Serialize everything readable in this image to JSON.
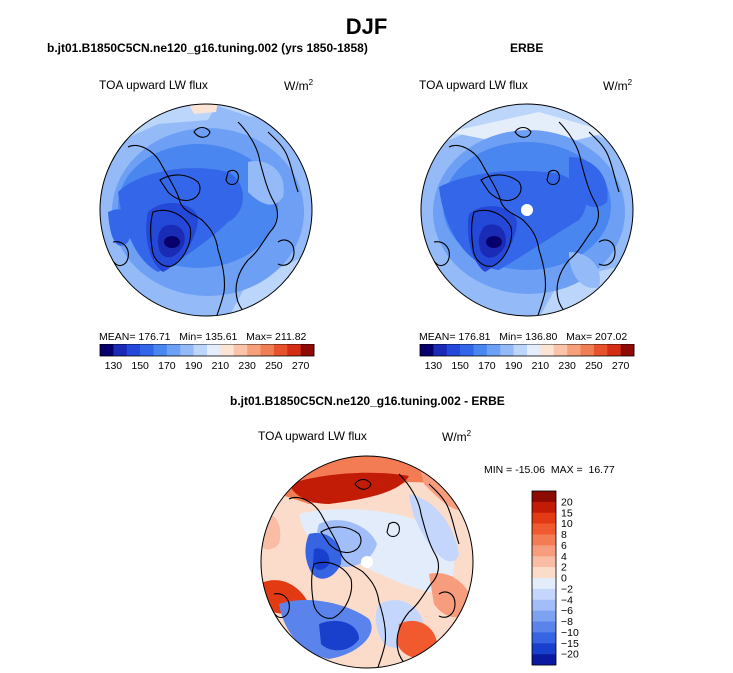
{
  "figure": {
    "season": "DJF"
  },
  "panels": {
    "model": {
      "title": "b.jt01.B1850C5CN.ne120_g16.tuning.002 (yrs 1850-1858)",
      "variable": "TOA upward LW flux",
      "units": "W/m",
      "units_exp": "2",
      "mean_label": "MEAN=",
      "mean": "176.71",
      "min_label": "Min=",
      "min": "135.61",
      "max_label": "Max=",
      "max": "211.82"
    },
    "obs": {
      "title": "ERBE",
      "variable": "TOA upward LW flux",
      "units": "W/m",
      "units_exp": "2",
      "mean_label": "MEAN=",
      "mean": "176.81",
      "min_label": "Min=",
      "min": "136.80",
      "max_label": "Max=",
      "max": "207.02"
    },
    "diff": {
      "title": "b.jt01.B1850C5CN.ne120_g16.tuning.002 - ERBE",
      "variable": "TOA upward LW flux",
      "units": "W/m",
      "units_exp": "2",
      "min_label": "MIN =",
      "min": "-15.06",
      "max_label": "MAX =",
      "max": "16.77"
    }
  },
  "chart_data": [
    {
      "type": "contour-map",
      "projection": "north-polar-stereographic",
      "title": "b.jt01.B1850C5CN.ne120_g16.tuning.002 (yrs 1850-1858)",
      "variable": "TOA upward LW flux",
      "units": "W/m^2",
      "colorbar": {
        "orientation": "horizontal",
        "levels": [
          130,
          140,
          150,
          160,
          170,
          180,
          190,
          200,
          210,
          220,
          230,
          240,
          250,
          260,
          270
        ],
        "tick_labels": [
          "130",
          "150",
          "170",
          "190",
          "210",
          "230",
          "250",
          "270"
        ],
        "colors": [
          "#08006a",
          "#1a2bb5",
          "#2448d8",
          "#3366e8",
          "#4a86f0",
          "#6d9ff4",
          "#94bbf8",
          "#bcd6fb",
          "#e4eefb",
          "#fbe4d4",
          "#fbc4a8",
          "#f7a07c",
          "#f07e54",
          "#e6522c",
          "#d22e14",
          "#8c0a02"
        ]
      },
      "stats": {
        "mean": 176.71,
        "min": 135.61,
        "max": 211.82
      }
    },
    {
      "type": "contour-map",
      "projection": "north-polar-stereographic",
      "title": "ERBE",
      "variable": "TOA upward LW flux",
      "units": "W/m^2",
      "colorbar": {
        "orientation": "horizontal",
        "levels": [
          130,
          140,
          150,
          160,
          170,
          180,
          190,
          200,
          210,
          220,
          230,
          240,
          250,
          260,
          270
        ],
        "tick_labels": [
          "130",
          "150",
          "170",
          "190",
          "210",
          "230",
          "250",
          "270"
        ],
        "colors": [
          "#08006a",
          "#1a2bb5",
          "#2448d8",
          "#3366e8",
          "#4a86f0",
          "#6d9ff4",
          "#94bbf8",
          "#bcd6fb",
          "#e4eefb",
          "#fbe4d4",
          "#fbc4a8",
          "#f7a07c",
          "#f07e54",
          "#e6522c",
          "#d22e14",
          "#8c0a02"
        ]
      },
      "stats": {
        "mean": 176.81,
        "min": 136.8,
        "max": 207.02
      }
    },
    {
      "type": "contour-map",
      "projection": "north-polar-stereographic",
      "title": "b.jt01.B1850C5CN.ne120_g16.tuning.002 - ERBE",
      "variable": "TOA upward LW flux",
      "units": "W/m^2",
      "colorbar": {
        "orientation": "vertical",
        "tick_labels": [
          "20",
          "15",
          "10",
          "8",
          "6",
          "4",
          "2",
          "0",
          "−2",
          "−4",
          "−6",
          "−8",
          "−10",
          "−15",
          "−20"
        ],
        "colors": [
          "#8c0a02",
          "#c31c06",
          "#e23a12",
          "#f05a2e",
          "#f47c54",
          "#f79c7c",
          "#f9bca4",
          "#fbdcca",
          "#e3ecfb",
          "#c4d6fb",
          "#a2bef8",
          "#7ea2f2",
          "#5a84ec",
          "#3664e2",
          "#1840cc",
          "#0a1aa0"
        ]
      },
      "stats": {
        "min": -15.06,
        "max": 16.77
      }
    }
  ]
}
